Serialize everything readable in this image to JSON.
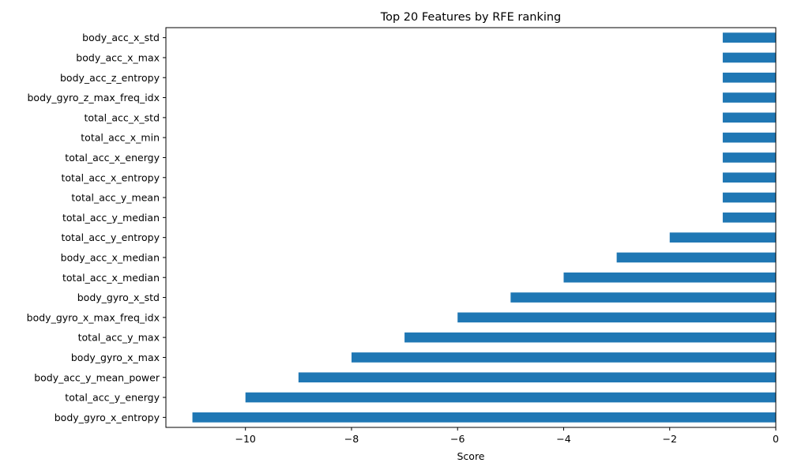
{
  "chart_data": {
    "type": "bar",
    "orientation": "horizontal",
    "title": "Top 20 Features by RFE ranking",
    "xlabel": "Score",
    "ylabel": "",
    "xlim": [
      -11.5,
      0
    ],
    "xticks": [
      -10,
      -8,
      -6,
      -4,
      -2,
      0
    ],
    "xtick_labels": [
      "−10",
      "−8",
      "−6",
      "−4",
      "−2",
      "0"
    ],
    "grid": false,
    "legend": "none",
    "bar_color": "#1f77b4",
    "categories": [
      "body_acc_x_std",
      "body_acc_x_max",
      "body_acc_z_entropy",
      "body_gyro_z_max_freq_idx",
      "total_acc_x_std",
      "total_acc_x_min",
      "total_acc_x_energy",
      "total_acc_x_entropy",
      "total_acc_y_mean",
      "total_acc_y_median",
      "total_acc_y_entropy",
      "body_acc_x_median",
      "total_acc_x_median",
      "body_gyro_x_std",
      "body_gyro_x_max_freq_idx",
      "total_acc_y_max",
      "body_gyro_x_max",
      "body_acc_y_mean_power",
      "total_acc_y_energy",
      "body_gyro_x_entropy"
    ],
    "values": [
      -1,
      -1,
      -1,
      -1,
      -1,
      -1,
      -1,
      -1,
      -1,
      -1,
      -2,
      -3,
      -4,
      -5,
      -6,
      -7,
      -8,
      -9,
      -10,
      -11
    ]
  }
}
